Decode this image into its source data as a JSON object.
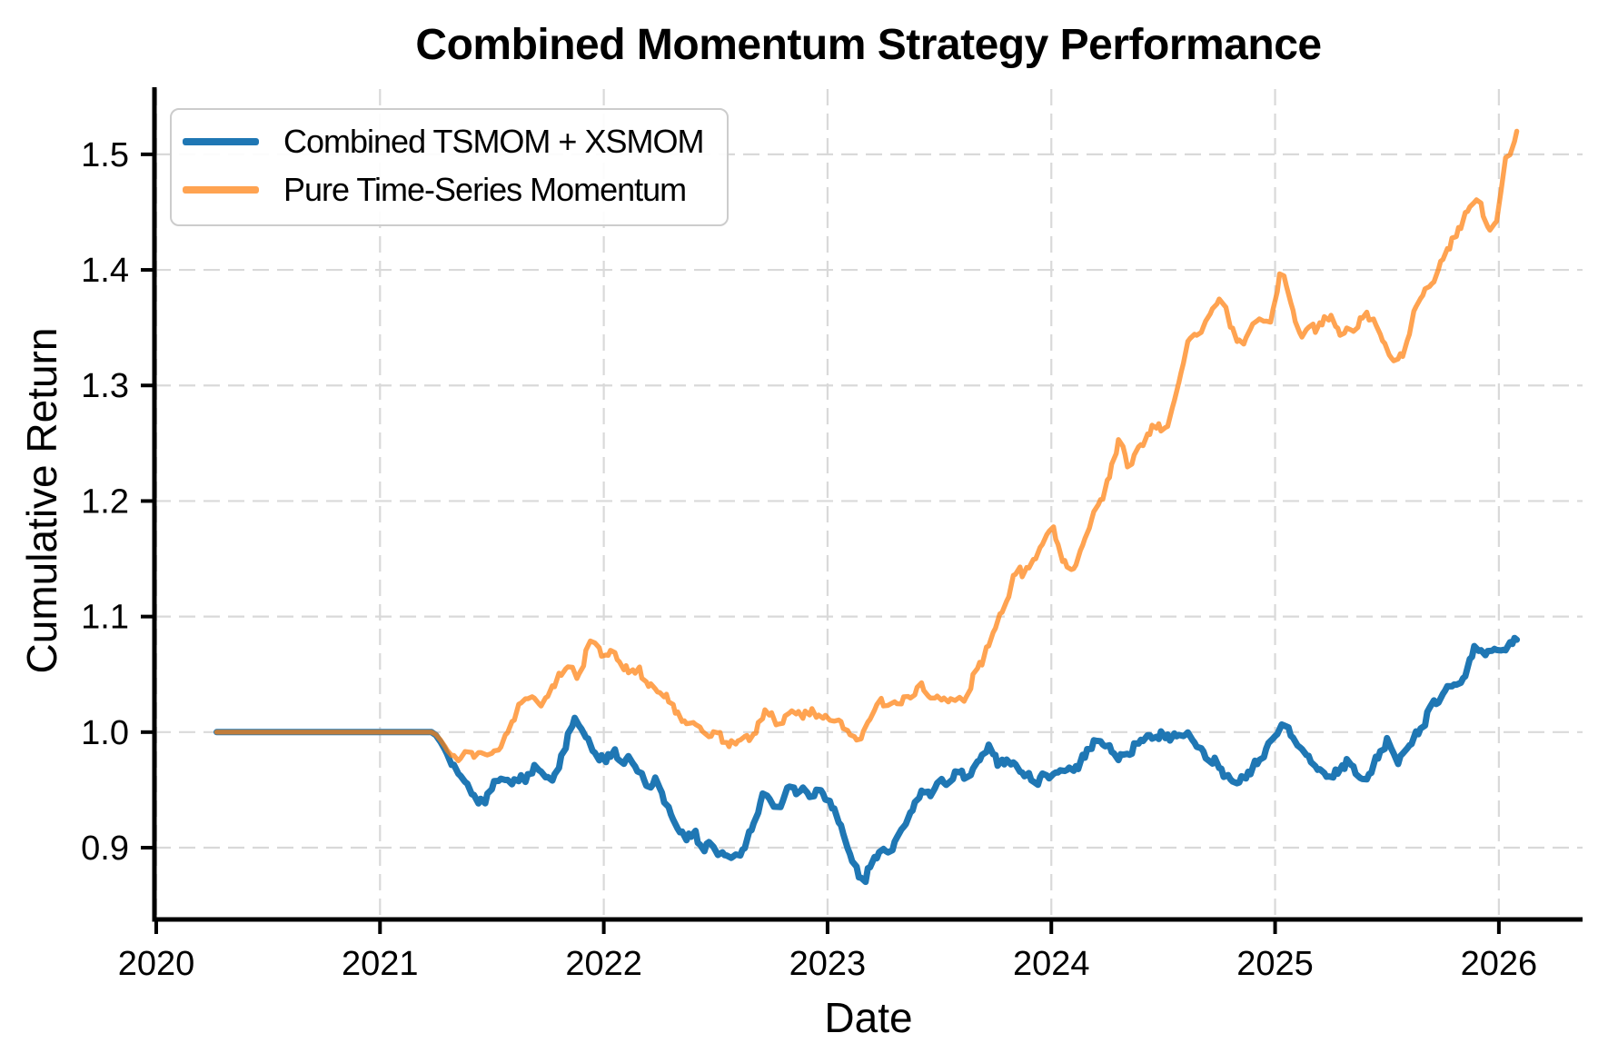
{
  "page": {
    "background": "#ffffff"
  },
  "chart_data": {
    "type": "line",
    "title": "Combined Momentum Strategy Performance",
    "xlabel": "Date",
    "ylabel": "Cumulative Return",
    "xlim": [
      2019.992,
      2026.374
    ],
    "ylim": [
      0.8379,
      1.5565
    ],
    "grid": true,
    "grid_color": "#d9d9d9",
    "axis_color": "#000000",
    "legend_position": "upper left",
    "xticks": {
      "values": [
        2020,
        2021,
        2022,
        2023,
        2024,
        2025,
        2026
      ],
      "labels": [
        "2020",
        "2021",
        "2022",
        "2023",
        "2024",
        "2025",
        "2026"
      ]
    },
    "yticks": {
      "values": [
        0.9,
        1.0,
        1.1,
        1.2,
        1.3,
        1.4,
        1.5
      ],
      "labels": [
        "0.9",
        "1.0",
        "1.1",
        "1.2",
        "1.3",
        "1.4",
        "1.5"
      ]
    },
    "series": [
      {
        "name": "Combined TSMOM + XSMOM",
        "color": "#1f77b4",
        "opacity": 1,
        "linewidth": 7,
        "points": [
          [
            2020.27,
            1.0
          ],
          [
            2021.24,
            1.0
          ],
          [
            2021.28,
            0.989
          ],
          [
            2021.31,
            0.977
          ],
          [
            2021.34,
            0.966
          ],
          [
            2021.37,
            0.962
          ],
          [
            2021.4,
            0.951
          ],
          [
            2021.43,
            0.944
          ],
          [
            2021.46,
            0.937
          ],
          [
            2021.49,
            0.95
          ],
          [
            2021.52,
            0.957
          ],
          [
            2021.55,
            0.962
          ],
          [
            2021.58,
            0.955
          ],
          [
            2021.61,
            0.962
          ],
          [
            2021.64,
            0.958
          ],
          [
            2021.67,
            0.964
          ],
          [
            2021.7,
            0.97
          ],
          [
            2021.73,
            0.964
          ],
          [
            2021.76,
            0.957
          ],
          [
            2021.79,
            0.967
          ],
          [
            2021.82,
            0.981
          ],
          [
            2021.85,
            1.005
          ],
          [
            2021.88,
            1.01
          ],
          [
            2021.91,
            0.999
          ],
          [
            2021.94,
            0.989
          ],
          [
            2021.97,
            0.979
          ],
          [
            2022.0,
            0.975
          ],
          [
            2022.04,
            0.983
          ],
          [
            2022.08,
            0.974
          ],
          [
            2022.12,
            0.978
          ],
          [
            2022.16,
            0.963
          ],
          [
            2022.2,
            0.954
          ],
          [
            2022.24,
            0.957
          ],
          [
            2022.28,
            0.937
          ],
          [
            2022.32,
            0.921
          ],
          [
            2022.36,
            0.907
          ],
          [
            2022.4,
            0.914
          ],
          [
            2022.44,
            0.899
          ],
          [
            2022.48,
            0.904
          ],
          [
            2022.52,
            0.892
          ],
          [
            2022.56,
            0.896
          ],
          [
            2022.6,
            0.888
          ],
          [
            2022.64,
            0.908
          ],
          [
            2022.68,
            0.925
          ],
          [
            2022.72,
            0.951
          ],
          [
            2022.75,
            0.937
          ],
          [
            2022.78,
            0.929
          ],
          [
            2022.81,
            0.946
          ],
          [
            2022.84,
            0.954
          ],
          [
            2022.87,
            0.945
          ],
          [
            2022.9,
            0.953
          ],
          [
            2022.93,
            0.939
          ],
          [
            2022.96,
            0.951
          ],
          [
            2023.0,
            0.943
          ],
          [
            2023.04,
            0.929
          ],
          [
            2023.08,
            0.905
          ],
          [
            2023.12,
            0.885
          ],
          [
            2023.16,
            0.869
          ],
          [
            2023.2,
            0.887
          ],
          [
            2023.24,
            0.9
          ],
          [
            2023.28,
            0.895
          ],
          [
            2023.32,
            0.911
          ],
          [
            2023.36,
            0.927
          ],
          [
            2023.4,
            0.941
          ],
          [
            2023.44,
            0.951
          ],
          [
            2023.47,
            0.944
          ],
          [
            2023.5,
            0.96
          ],
          [
            2023.54,
            0.955
          ],
          [
            2023.58,
            0.967
          ],
          [
            2023.62,
            0.959
          ],
          [
            2023.66,
            0.971
          ],
          [
            2023.7,
            0.983
          ],
          [
            2023.73,
            0.986
          ],
          [
            2023.77,
            0.971
          ],
          [
            2023.81,
            0.977
          ],
          [
            2023.85,
            0.968
          ],
          [
            2023.89,
            0.962
          ],
          [
            2023.93,
            0.957
          ],
          [
            2023.97,
            0.962
          ],
          [
            2024.0,
            0.96
          ],
          [
            2024.05,
            0.969
          ],
          [
            2024.09,
            0.965
          ],
          [
            2024.13,
            0.974
          ],
          [
            2024.17,
            0.987
          ],
          [
            2024.21,
            0.993
          ],
          [
            2024.25,
            0.988
          ],
          [
            2024.29,
            0.98
          ],
          [
            2024.33,
            0.977
          ],
          [
            2024.38,
            0.989
          ],
          [
            2024.42,
            0.996
          ],
          [
            2024.46,
            0.995
          ],
          [
            2024.5,
            0.999
          ],
          [
            2024.54,
            0.993
          ],
          [
            2024.58,
            1.0
          ],
          [
            2024.62,
            0.997
          ],
          [
            2024.66,
            0.985
          ],
          [
            2024.7,
            0.978
          ],
          [
            2024.74,
            0.972
          ],
          [
            2024.78,
            0.962
          ],
          [
            2024.82,
            0.956
          ],
          [
            2024.86,
            0.96
          ],
          [
            2024.9,
            0.968
          ],
          [
            2024.94,
            0.979
          ],
          [
            2024.98,
            0.991
          ],
          [
            2025.02,
            1.003
          ],
          [
            2025.05,
            1.006
          ],
          [
            2025.09,
            0.993
          ],
          [
            2025.13,
            0.981
          ],
          [
            2025.17,
            0.973
          ],
          [
            2025.21,
            0.966
          ],
          [
            2025.25,
            0.959
          ],
          [
            2025.29,
            0.968
          ],
          [
            2025.33,
            0.977
          ],
          [
            2025.37,
            0.961
          ],
          [
            2025.4,
            0.956
          ],
          [
            2025.44,
            0.971
          ],
          [
            2025.48,
            0.987
          ],
          [
            2025.51,
            0.995
          ],
          [
            2025.54,
            0.972
          ],
          [
            2025.58,
            0.983
          ],
          [
            2025.62,
            0.995
          ],
          [
            2025.66,
            1.005
          ],
          [
            2025.7,
            1.024
          ],
          [
            2025.74,
            1.029
          ],
          [
            2025.78,
            1.043
          ],
          [
            2025.82,
            1.037
          ],
          [
            2025.86,
            1.057
          ],
          [
            2025.9,
            1.077
          ],
          [
            2025.93,
            1.063
          ],
          [
            2025.96,
            1.073
          ],
          [
            2026.0,
            1.068
          ],
          [
            2026.04,
            1.076
          ],
          [
            2026.08,
            1.08
          ]
        ]
      },
      {
        "name": "Pure Time-Series Momentum",
        "color": "#ff7f0e",
        "opacity": 0.72,
        "linewidth": 5.4,
        "points": [
          [
            2020.27,
            1.0
          ],
          [
            2021.24,
            1.0
          ],
          [
            2021.28,
            0.991
          ],
          [
            2021.31,
            0.981
          ],
          [
            2021.34,
            0.974
          ],
          [
            2021.37,
            0.978
          ],
          [
            2021.4,
            0.983
          ],
          [
            2021.43,
            0.978
          ],
          [
            2021.46,
            0.983
          ],
          [
            2021.49,
            0.979
          ],
          [
            2021.52,
            0.982
          ],
          [
            2021.55,
            0.989
          ],
          [
            2021.58,
            1.003
          ],
          [
            2021.61,
            1.017
          ],
          [
            2021.64,
            1.029
          ],
          [
            2021.67,
            1.03
          ],
          [
            2021.7,
            1.026
          ],
          [
            2021.73,
            1.021
          ],
          [
            2021.76,
            1.035
          ],
          [
            2021.79,
            1.045
          ],
          [
            2021.82,
            1.052
          ],
          [
            2021.85,
            1.061
          ],
          [
            2021.87,
            1.047
          ],
          [
            2021.9,
            1.052
          ],
          [
            2021.93,
            1.074
          ],
          [
            2021.95,
            1.089
          ],
          [
            2021.97,
            1.071
          ],
          [
            2022.0,
            1.065
          ],
          [
            2022.04,
            1.072
          ],
          [
            2022.08,
            1.057
          ],
          [
            2022.12,
            1.05
          ],
          [
            2022.15,
            1.056
          ],
          [
            2022.18,
            1.045
          ],
          [
            2022.22,
            1.039
          ],
          [
            2022.26,
            1.033
          ],
          [
            2022.3,
            1.025
          ],
          [
            2022.34,
            1.014
          ],
          [
            2022.38,
            1.005
          ],
          [
            2022.42,
            1.008
          ],
          [
            2022.46,
            0.996
          ],
          [
            2022.5,
            1.0
          ],
          [
            2022.54,
            0.992
          ],
          [
            2022.58,
            0.989
          ],
          [
            2022.62,
            0.996
          ],
          [
            2022.66,
            0.993
          ],
          [
            2022.7,
            1.011
          ],
          [
            2022.73,
            1.022
          ],
          [
            2022.76,
            1.009
          ],
          [
            2022.79,
            1.005
          ],
          [
            2022.82,
            1.016
          ],
          [
            2022.85,
            1.021
          ],
          [
            2022.88,
            1.013
          ],
          [
            2022.91,
            1.019
          ],
          [
            2022.94,
            1.015
          ],
          [
            2022.97,
            1.013
          ],
          [
            2023.0,
            1.012
          ],
          [
            2023.04,
            1.009
          ],
          [
            2023.08,
            1.005
          ],
          [
            2023.11,
            0.998
          ],
          [
            2023.14,
            0.993
          ],
          [
            2023.17,
            1.005
          ],
          [
            2023.2,
            1.015
          ],
          [
            2023.23,
            1.03
          ],
          [
            2023.26,
            1.023
          ],
          [
            2023.29,
            1.028
          ],
          [
            2023.32,
            1.025
          ],
          [
            2023.35,
            1.033
          ],
          [
            2023.38,
            1.028
          ],
          [
            2023.41,
            1.045
          ],
          [
            2023.44,
            1.035
          ],
          [
            2023.47,
            1.029
          ],
          [
            2023.5,
            1.034
          ],
          [
            2023.53,
            1.026
          ],
          [
            2023.56,
            1.03
          ],
          [
            2023.6,
            1.027
          ],
          [
            2023.63,
            1.031
          ],
          [
            2023.66,
            1.053
          ],
          [
            2023.7,
            1.065
          ],
          [
            2023.73,
            1.082
          ],
          [
            2023.76,
            1.097
          ],
          [
            2023.79,
            1.107
          ],
          [
            2023.82,
            1.125
          ],
          [
            2023.85,
            1.145
          ],
          [
            2023.88,
            1.135
          ],
          [
            2023.91,
            1.149
          ],
          [
            2023.94,
            1.154
          ],
          [
            2023.97,
            1.167
          ],
          [
            2024.0,
            1.18
          ],
          [
            2024.04,
            1.157
          ],
          [
            2024.08,
            1.135
          ],
          [
            2024.12,
            1.151
          ],
          [
            2024.16,
            1.173
          ],
          [
            2024.2,
            1.193
          ],
          [
            2024.24,
            1.209
          ],
          [
            2024.28,
            1.237
          ],
          [
            2024.31,
            1.256
          ],
          [
            2024.35,
            1.223
          ],
          [
            2024.38,
            1.245
          ],
          [
            2024.42,
            1.253
          ],
          [
            2024.46,
            1.267
          ],
          [
            2024.5,
            1.259
          ],
          [
            2024.53,
            1.271
          ],
          [
            2024.56,
            1.293
          ],
          [
            2024.6,
            1.331
          ],
          [
            2024.63,
            1.349
          ],
          [
            2024.66,
            1.343
          ],
          [
            2024.7,
            1.359
          ],
          [
            2024.73,
            1.367
          ],
          [
            2024.76,
            1.379
          ],
          [
            2024.79,
            1.357
          ],
          [
            2024.82,
            1.343
          ],
          [
            2024.85,
            1.331
          ],
          [
            2024.88,
            1.345
          ],
          [
            2024.91,
            1.354
          ],
          [
            2024.94,
            1.36
          ],
          [
            2024.97,
            1.349
          ],
          [
            2025.0,
            1.371
          ],
          [
            2025.03,
            1.403
          ],
          [
            2025.06,
            1.377
          ],
          [
            2025.1,
            1.349
          ],
          [
            2025.13,
            1.341
          ],
          [
            2025.16,
            1.355
          ],
          [
            2025.19,
            1.346
          ],
          [
            2025.23,
            1.363
          ],
          [
            2025.26,
            1.356
          ],
          [
            2025.3,
            1.341
          ],
          [
            2025.33,
            1.351
          ],
          [
            2025.36,
            1.344
          ],
          [
            2025.4,
            1.366
          ],
          [
            2025.43,
            1.358
          ],
          [
            2025.46,
            1.352
          ],
          [
            2025.5,
            1.329
          ],
          [
            2025.54,
            1.319
          ],
          [
            2025.58,
            1.33
          ],
          [
            2025.61,
            1.357
          ],
          [
            2025.64,
            1.376
          ],
          [
            2025.68,
            1.383
          ],
          [
            2025.72,
            1.393
          ],
          [
            2025.76,
            1.417
          ],
          [
            2025.8,
            1.426
          ],
          [
            2025.84,
            1.443
          ],
          [
            2025.88,
            1.458
          ],
          [
            2025.91,
            1.464
          ],
          [
            2025.94,
            1.44
          ],
          [
            2025.97,
            1.436
          ],
          [
            2026.0,
            1.447
          ],
          [
            2026.02,
            1.497
          ],
          [
            2026.04,
            1.491
          ],
          [
            2026.06,
            1.507
          ],
          [
            2026.08,
            1.52
          ]
        ]
      }
    ]
  }
}
